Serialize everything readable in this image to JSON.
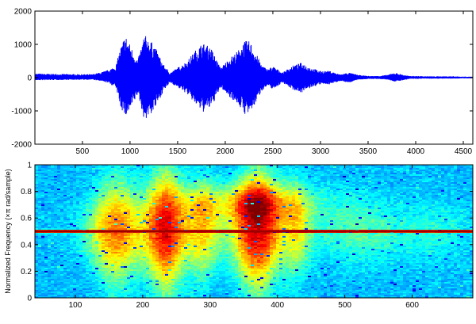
{
  "chart_data": [
    {
      "type": "line",
      "title": "",
      "xlabel": "",
      "ylabel": "",
      "xlim": [
        1,
        4600
      ],
      "ylim": [
        -2000,
        2000
      ],
      "xticks": [
        500,
        1000,
        1500,
        2000,
        2500,
        3000,
        3500,
        4000,
        4500
      ],
      "yticks": [
        -2000,
        -1000,
        0,
        1000,
        2000
      ],
      "grid": false,
      "series_color": "#0000ff",
      "envelope": {
        "x": [
          0,
          300,
          600,
          680,
          760,
          850,
          900,
          950,
          1000,
          1080,
          1150,
          1250,
          1350,
          1420,
          1500,
          1600,
          1680,
          1760,
          1850,
          1950,
          2050,
          2130,
          2200,
          2260,
          2320,
          2380,
          2440,
          2500,
          2600,
          2700,
          2800,
          2900,
          3000,
          3100,
          3200,
          3300,
          3400,
          3500,
          3600,
          3700,
          3780,
          3850,
          3930,
          4000,
          4100,
          4200,
          4300,
          4400,
          4500,
          4600
        ],
        "upper": [
          120,
          110,
          100,
          150,
          220,
          350,
          900,
          1300,
          1000,
          500,
          1300,
          1000,
          400,
          150,
          300,
          500,
          800,
          1050,
          900,
          300,
          600,
          800,
          1100,
          1100,
          750,
          400,
          250,
          350,
          150,
          350,
          450,
          300,
          200,
          200,
          100,
          150,
          80,
          50,
          50,
          80,
          150,
          100,
          50,
          50,
          40,
          40,
          40,
          40,
          30,
          30
        ],
        "lower": [
          -80,
          -70,
          -60,
          -100,
          -150,
          -300,
          -900,
          -1200,
          -1000,
          -500,
          -1300,
          -1000,
          -400,
          -150,
          -300,
          -500,
          -800,
          -1050,
          -900,
          -300,
          -600,
          -800,
          -1100,
          -1100,
          -750,
          -400,
          -250,
          -350,
          -150,
          -350,
          -450,
          -300,
          -200,
          -200,
          -100,
          -150,
          -60,
          -40,
          -40,
          -60,
          -120,
          -90,
          -40,
          -40,
          -30,
          -30,
          -30,
          -30,
          -20,
          -20
        ]
      }
    },
    {
      "type": "heatmap",
      "title": "",
      "xlabel": "",
      "ylabel": "Normalized Frequency  (×π rad/sample)",
      "xlim": [
        40,
        690
      ],
      "ylim": [
        0,
        1
      ],
      "xticks": [
        100,
        200,
        300,
        400,
        500,
        600
      ],
      "yticks": [
        0,
        0.2,
        0.4,
        0.6,
        0.8,
        1
      ],
      "colormap": "jet",
      "features": {
        "center_line_frequency": 0.5,
        "energy_lobes_x": [
          [
            120,
            200
          ],
          [
            200,
            270
          ],
          [
            270,
            310
          ],
          [
            330,
            410
          ],
          [
            410,
            450
          ]
        ]
      }
    }
  ]
}
